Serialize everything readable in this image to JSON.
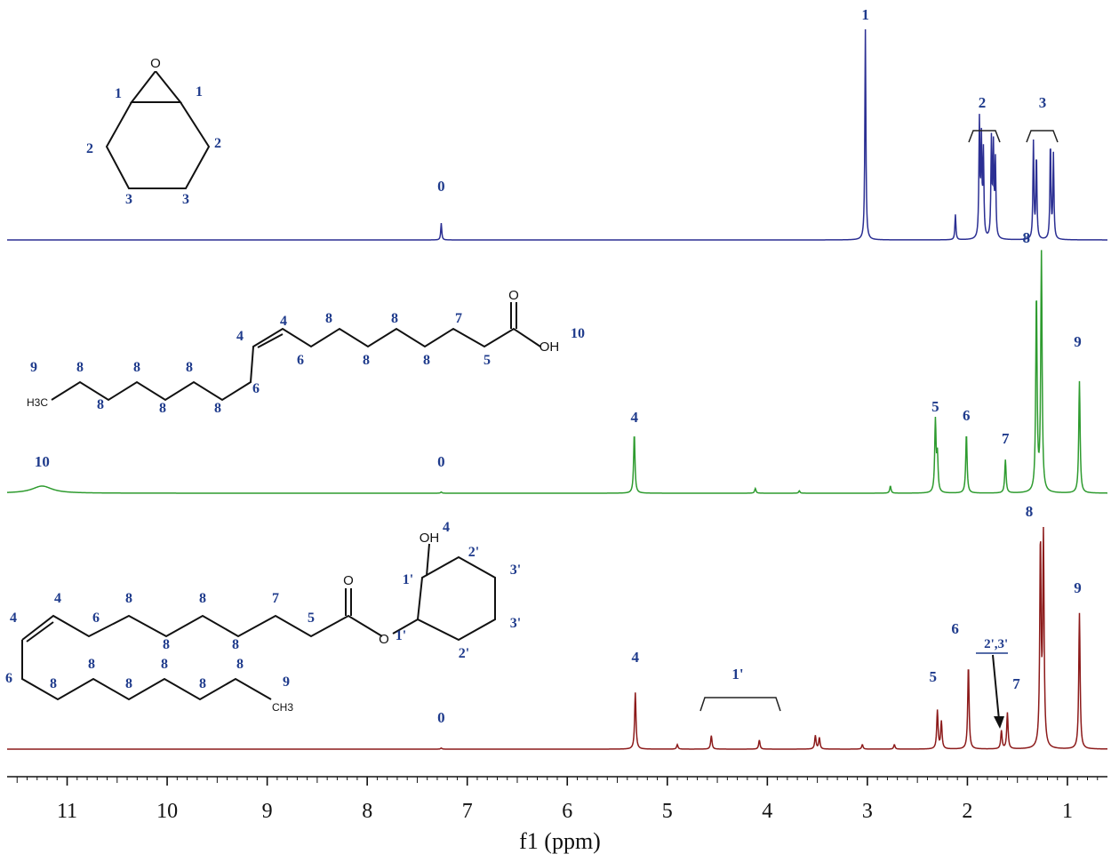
{
  "chart_data": {
    "type": "line",
    "xlabel": "f1 (ppm)",
    "xlim": [
      11.6,
      0.6
    ],
    "x_ticks": [
      11,
      10,
      9,
      8,
      7,
      6,
      5,
      4,
      3,
      2,
      1
    ],
    "x_tick_labels": [
      "11",
      "10",
      "9",
      "8",
      "7",
      "6",
      "5",
      "4",
      "3",
      "2",
      "1"
    ],
    "series": [
      {
        "color": "#2b2f93",
        "peaks": [
          {
            "ppm": 7.26,
            "height": 0.08,
            "label": "0"
          },
          {
            "ppm": 3.02,
            "height": 1.0,
            "label": "1"
          },
          {
            "ppm": 2.12,
            "height": 0.12
          },
          {
            "ppm": 1.88,
            "height": 0.55
          },
          {
            "ppm": 1.86,
            "height": 0.45
          },
          {
            "ppm": 1.84,
            "height": 0.4
          },
          {
            "ppm": 1.76,
            "height": 0.46
          },
          {
            "ppm": 1.74,
            "height": 0.42
          },
          {
            "ppm": 1.72,
            "height": 0.36
          },
          {
            "ppm": 1.34,
            "height": 0.46
          },
          {
            "ppm": 1.31,
            "height": 0.4
          },
          {
            "ppm": 1.17,
            "height": 0.46
          },
          {
            "ppm": 1.14,
            "height": 0.4
          }
        ]
      },
      {
        "color": "#2e9b2f",
        "peaks": [
          {
            "ppm": 11.25,
            "height": 0.03,
            "label": "10"
          },
          {
            "ppm": 7.26,
            "height": 0.005,
            "label": "0"
          },
          {
            "ppm": 5.33,
            "height": 0.25,
            "label": "4"
          },
          {
            "ppm": 4.12,
            "height": 0.02
          },
          {
            "ppm": 3.68,
            "height": 0.01
          },
          {
            "ppm": 2.77,
            "height": 0.03
          },
          {
            "ppm": 2.32,
            "height": 0.3,
            "label": "5"
          },
          {
            "ppm": 2.3,
            "height": 0.15
          },
          {
            "ppm": 2.01,
            "height": 0.25,
            "label": "6"
          },
          {
            "ppm": 1.62,
            "height": 0.14,
            "label": "7"
          },
          {
            "ppm": 1.31,
            "height": 0.83
          },
          {
            "ppm": 1.26,
            "height": 1.0,
            "label": "8"
          },
          {
            "ppm": 0.88,
            "height": 0.47,
            "label": "9"
          }
        ]
      },
      {
        "color": "#8c1a1a",
        "peaks": [
          {
            "ppm": 7.26,
            "height": 0.005,
            "label": "0"
          },
          {
            "ppm": 5.32,
            "height": 0.25,
            "label": "4"
          },
          {
            "ppm": 4.9,
            "height": 0.02
          },
          {
            "ppm": 4.56,
            "height": 0.06
          },
          {
            "ppm": 4.08,
            "height": 0.04
          },
          {
            "ppm": 3.52,
            "height": 0.06
          },
          {
            "ppm": 3.48,
            "height": 0.05
          },
          {
            "ppm": 3.05,
            "height": 0.02
          },
          {
            "ppm": 2.73,
            "height": 0.02
          },
          {
            "ppm": 2.3,
            "height": 0.17,
            "label": "5"
          },
          {
            "ppm": 2.26,
            "height": 0.12
          },
          {
            "ppm": 1.99,
            "height": 0.37,
            "label": "6"
          },
          {
            "ppm": 1.66,
            "height": 0.08,
            "label": "2',3'"
          },
          {
            "ppm": 1.6,
            "height": 0.16,
            "label": "7"
          },
          {
            "ppm": 1.27,
            "height": 0.9
          },
          {
            "ppm": 1.24,
            "height": 0.92,
            "label": "8"
          },
          {
            "ppm": 0.88,
            "height": 0.6,
            "label": "9"
          }
        ]
      }
    ],
    "group_labels": [
      "2",
      "3",
      "1'"
    ],
    "structure_labels": {
      "epoxide": [
        "1",
        "1",
        "2",
        "2",
        "3",
        "3"
      ],
      "acid": [
        "9",
        "8",
        "8",
        "8",
        "8",
        "8",
        "8",
        "8",
        "8",
        "6",
        "4",
        "4",
        "6",
        "8",
        "8",
        "8",
        "8",
        "7",
        "5",
        "10"
      ],
      "ester": [
        "4",
        "4",
        "6",
        "8",
        "8",
        "8",
        "7",
        "5",
        "6",
        "8",
        "8",
        "8",
        "8",
        "8",
        "8",
        "8",
        "9",
        "1'",
        "1'",
        "2'",
        "2'",
        "3'",
        "3'",
        "4"
      ]
    },
    "atoms": {
      "O": "O",
      "OH": "OH",
      "H3C": "H3C",
      "CH3": "CH3"
    }
  }
}
